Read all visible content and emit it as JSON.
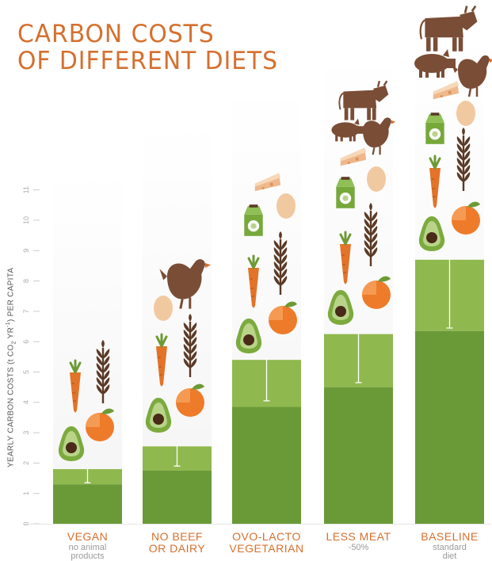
{
  "title": {
    "line1": "CARBON COSTS",
    "line2": "OF DIFFERENT DIETS"
  },
  "colors": {
    "title": "#d5702f",
    "bar_dark": "#6a9a38",
    "bar_light": "#8fb84e",
    "column_bg": "#f4f4f4",
    "avocado": "#7caa3e",
    "carrot": "#e37328",
    "orange": "#ee7b2a",
    "wheat": "#5b3a26",
    "egg": "#f1c9a0",
    "cheese": "#eeb88c",
    "milk": "#76a83a",
    "animal": "#7a4d36"
  },
  "chart_data": {
    "type": "bar",
    "title": "CARBON COSTS OF DIFFERENT DIETS",
    "ylabel": "YEARLY CARBON COSTS (t CO",
    "ylabel_sub2": "2",
    "ylabel_mid": " YR",
    "ylabel_sup": "-1",
    "ylabel_end": ") PER CAPITA",
    "ylim": [
      0,
      11
    ],
    "yticks": [
      "0",
      "1",
      "2",
      "3",
      "4",
      "5",
      "6",
      "7",
      "8",
      "9",
      "10",
      "11"
    ],
    "categories": [
      "VEGAN",
      "NO BEEF OR DAIRY",
      "OVO-LACTO VEGETARIAN",
      "LESS MEAT",
      "BASELINE"
    ],
    "category_lines": [
      [
        "VEGAN"
      ],
      [
        "NO BEEF",
        "OR DAIRY"
      ],
      [
        "OVO-LACTO",
        "VEGETARIAN"
      ],
      [
        "LESS MEAT"
      ],
      [
        "BASELINE"
      ]
    ],
    "sublabels": [
      [
        "no animal",
        "products"
      ],
      [
        "",
        ""
      ],
      [
        "",
        ""
      ],
      [
        "-50%"
      ],
      [
        "standard",
        "diet"
      ]
    ],
    "series": [
      {
        "values": [
          1.3,
          1.75,
          3.85,
          4.5,
          6.35
        ]
      },
      {
        "values": [
          1.8,
          2.55,
          5.4,
          6.25,
          8.7
        ]
      }
    ],
    "range_low": [
      1.35,
      1.9,
      4.05,
      4.65,
      6.45
    ],
    "icons": [
      [
        "avocado",
        "carrot",
        "orange",
        "wheat"
      ],
      [
        "avocado",
        "carrot",
        "orange",
        "wheat",
        "egg",
        "chicken"
      ],
      [
        "avocado",
        "carrot",
        "orange",
        "wheat",
        "milk",
        "egg",
        "cheese"
      ],
      [
        "avocado",
        "carrot",
        "orange",
        "wheat",
        "milk",
        "egg",
        "cheese",
        "pig",
        "chicken",
        "cow"
      ],
      [
        "avocado",
        "carrot",
        "orange",
        "wheat",
        "milk",
        "egg",
        "cheese",
        "pig",
        "chicken",
        "cow"
      ]
    ]
  }
}
